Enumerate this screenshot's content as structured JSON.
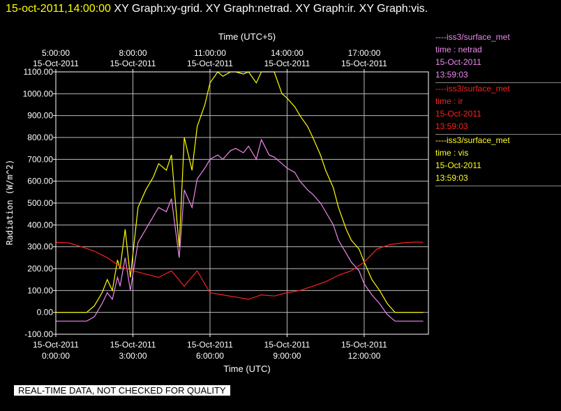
{
  "header": {
    "timestamp": "15-oct-2011,14:00:00",
    "titles": "XY Graph:xy-grid.  XY Graph:netrad.  XY Graph:ir.  XY Graph:vis."
  },
  "legend": [
    {
      "line": "----iss3/surface_met",
      "field": "time : netrad",
      "date": "15-Oct-2011",
      "time": "13:59:03",
      "color": "#ee88ee"
    },
    {
      "line": "----iss3/surface_met",
      "field": "time : ir",
      "date": "15-Oct-2011",
      "time": "13:59:03",
      "color": "#ff2020"
    },
    {
      "line": "----iss3/surface_met",
      "field": "time : vis",
      "date": "15-Oct-2011",
      "time": "13:59:03",
      "color": "#ffff20"
    }
  ],
  "footer_note": "REAL-TIME DATA, NOT CHECKED FOR QUALITY",
  "chart_data": {
    "type": "line",
    "xlabel": "Time (UTC)",
    "x2label": "Time (UTC+5)",
    "ylabel": "Radiation  (W/m^2)",
    "xlim": [
      0,
      14.5
    ],
    "ylim": [
      -100,
      1100
    ],
    "grid": true,
    "legend_position": "right",
    "x_ticks": [
      {
        "value": 0,
        "date": "15-Oct-2011",
        "time": "0:00:00"
      },
      {
        "value": 3,
        "date": "15-Oct-2011",
        "time": "3:00:00"
      },
      {
        "value": 6,
        "date": "15-Oct-2011",
        "time": "6:00:00"
      },
      {
        "value": 9,
        "date": "15-Oct-2011",
        "time": "9:00:00"
      },
      {
        "value": 12,
        "date": "15-Oct-2011",
        "time": "12:00:00"
      }
    ],
    "x2_ticks": [
      {
        "value": 0,
        "time": "5:00:00",
        "date": "15-Oct-2011"
      },
      {
        "value": 3,
        "time": "8:00:00",
        "date": "15-Oct-2011"
      },
      {
        "value": 6,
        "time": "11:00:00",
        "date": "15-Oct-2011"
      },
      {
        "value": 9,
        "time": "14:00:00",
        "date": "15-Oct-2011"
      },
      {
        "value": 12,
        "time": "17:00:00",
        "date": "15-Oct-2011"
      }
    ],
    "y_ticks": [
      {
        "value": 1100,
        "label": "1100.00"
      },
      {
        "value": 1000,
        "label": "1000.00"
      },
      {
        "value": 900,
        "label": "900.00"
      },
      {
        "value": 800,
        "label": "800.00"
      },
      {
        "value": 700,
        "label": "700.00"
      },
      {
        "value": 600,
        "label": "600.00"
      },
      {
        "value": 500,
        "label": "500.00"
      },
      {
        "value": 400,
        "label": "400.00"
      },
      {
        "value": 300,
        "label": "300.00"
      },
      {
        "value": 200,
        "label": "200.00"
      },
      {
        "value": 100,
        "label": "100.00"
      },
      {
        "value": 0,
        "label": "0.00"
      },
      {
        "value": -100,
        "label": "-100.00"
      }
    ],
    "series": [
      {
        "name": "vis",
        "color": "#ffff00",
        "x": [
          0,
          1.2,
          1.5,
          1.8,
          2.0,
          2.2,
          2.4,
          2.5,
          2.7,
          2.9,
          3.2,
          3.5,
          3.8,
          4.0,
          4.3,
          4.5,
          4.8,
          5.0,
          5.3,
          5.5,
          5.8,
          6.0,
          6.3,
          6.5,
          6.8,
          7.0,
          7.3,
          7.5,
          7.8,
          8.0,
          8.3,
          8.5,
          8.8,
          9.0,
          9.3,
          9.5,
          9.8,
          10.0,
          10.3,
          10.5,
          10.8,
          11.0,
          11.3,
          11.5,
          11.8,
          12.0,
          12.3,
          12.6,
          12.9,
          13.2,
          13.5,
          14.0,
          14.3
        ],
        "y": [
          0,
          0,
          30,
          90,
          150,
          100,
          240,
          200,
          380,
          160,
          480,
          560,
          620,
          680,
          650,
          720,
          300,
          800,
          650,
          850,
          950,
          1050,
          1100,
          1080,
          1100,
          1100,
          1090,
          1100,
          1050,
          1100,
          1100,
          1100,
          1000,
          980,
          940,
          900,
          850,
          800,
          720,
          650,
          570,
          480,
          380,
          330,
          290,
          230,
          150,
          100,
          40,
          0,
          0,
          0,
          0
        ]
      },
      {
        "name": "netrad",
        "color": "#ee88ee",
        "x": [
          0,
          1.2,
          1.5,
          1.8,
          2.0,
          2.2,
          2.4,
          2.5,
          2.7,
          2.9,
          3.2,
          3.5,
          3.8,
          4.0,
          4.3,
          4.5,
          4.8,
          5.0,
          5.3,
          5.5,
          5.8,
          6.0,
          6.3,
          6.5,
          6.8,
          7.0,
          7.3,
          7.5,
          7.8,
          8.0,
          8.3,
          8.5,
          8.8,
          9.0,
          9.3,
          9.5,
          9.8,
          10.0,
          10.3,
          10.5,
          10.8,
          11.0,
          11.3,
          11.5,
          11.8,
          12.0,
          12.3,
          12.6,
          12.9,
          13.2,
          13.5,
          14.0,
          14.3
        ],
        "y": [
          -40,
          -40,
          -20,
          40,
          90,
          60,
          160,
          120,
          250,
          100,
          320,
          380,
          440,
          480,
          460,
          520,
          250,
          560,
          480,
          610,
          660,
          700,
          720,
          700,
          740,
          750,
          730,
          760,
          700,
          790,
          720,
          710,
          680,
          660,
          640,
          600,
          560,
          540,
          500,
          460,
          400,
          330,
          270,
          230,
          190,
          130,
          80,
          40,
          -10,
          -40,
          -40,
          -40,
          -40
        ]
      },
      {
        "name": "ir",
        "color": "#ff2020",
        "x": [
          0,
          0.5,
          1.0,
          1.5,
          2.0,
          2.5,
          3.0,
          3.5,
          4.0,
          4.5,
          5.0,
          5.5,
          6.0,
          6.5,
          7.0,
          7.5,
          8.0,
          8.5,
          9.0,
          9.5,
          10.0,
          10.5,
          11.0,
          11.5,
          12.0,
          12.5,
          13.0,
          13.5,
          14.0,
          14.3
        ],
        "y": [
          320,
          318,
          300,
          280,
          250,
          210,
          190,
          175,
          160,
          190,
          120,
          190,
          90,
          80,
          70,
          60,
          80,
          75,
          90,
          100,
          120,
          140,
          170,
          190,
          230,
          290,
          310,
          318,
          322,
          320
        ]
      }
    ]
  }
}
